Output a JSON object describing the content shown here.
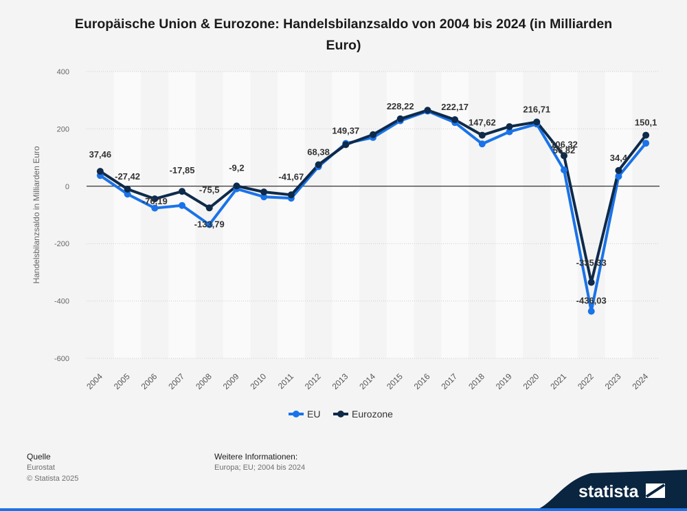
{
  "header": {
    "title": "Europäische Union & Eurozone: Handelsbilanzsaldo von 2004 bis 2024 (in Milliarden Euro)"
  },
  "footer": {
    "source_heading": "Quelle",
    "source": "Eurostat",
    "copyright": "© Statista 2025",
    "info_heading": "Weitere Informationen:",
    "info": "Europa; EU; 2004 bis 2024"
  },
  "brand": {
    "name": "statista",
    "accent": "#0a2540"
  },
  "chart_data": {
    "type": "line",
    "title": "Europäische Union & Eurozone: Handelsbilanzsaldo von 2004 bis 2024 (in Milliarden Euro)",
    "ylabel": "Handelsbilanzsaldo in Milliarden Euro",
    "xlabel": "",
    "ylim": [
      -600,
      400
    ],
    "yticks": [
      400,
      200,
      0,
      -200,
      -400,
      -600
    ],
    "categories": [
      "2004",
      "2005",
      "2006",
      "2007",
      "2008",
      "2009",
      "2010",
      "2011",
      "2012",
      "2013",
      "2014",
      "2015",
      "2016",
      "2017",
      "2018",
      "2019",
      "2020",
      "2021",
      "2022",
      "2023",
      "2024"
    ],
    "legend_position": "bottom",
    "grid": true,
    "series": [
      {
        "name": "EU",
        "color": "#1a73e8",
        "values": [
          37.46,
          -27.42,
          -76.19,
          -67,
          -133.79,
          -9.2,
          -37,
          -41.67,
          68.38,
          149.37,
          170,
          228.22,
          262,
          222.17,
          147.62,
          190,
          216.71,
          56.82,
          -436.03,
          34.4,
          150.1
        ]
      },
      {
        "name": "Eurozone",
        "color": "#0f2a4a",
        "values": [
          52,
          -10,
          -44,
          -17.85,
          -75.5,
          1,
          -20,
          -30,
          75,
          145,
          180,
          235,
          265,
          232,
          178,
          208,
          224,
          106.32,
          -335.33,
          55,
          178
        ]
      }
    ],
    "data_labels": [
      {
        "x": "2004",
        "text": "37,46"
      },
      {
        "x": "2005",
        "text": "-27,42"
      },
      {
        "x": "2006",
        "text": "-76,19"
      },
      {
        "x": "2007",
        "text": "-17,85"
      },
      {
        "x": "2008",
        "text": "-75,5"
      },
      {
        "x": "2008",
        "text": "-133,79"
      },
      {
        "x": "2009",
        "text": "-9,2"
      },
      {
        "x": "2011",
        "text": "-41,67"
      },
      {
        "x": "2012",
        "text": "68,38"
      },
      {
        "x": "2013",
        "text": "149,37"
      },
      {
        "x": "2015",
        "text": "228,22"
      },
      {
        "x": "2017",
        "text": "222,17"
      },
      {
        "x": "2018",
        "text": "147,62"
      },
      {
        "x": "2020",
        "text": "216,71"
      },
      {
        "x": "2021",
        "text": "106,32"
      },
      {
        "x": "2021",
        "text": "56,82"
      },
      {
        "x": "2022",
        "text": "-335,33"
      },
      {
        "x": "2022",
        "text": "-436,03"
      },
      {
        "x": "2023",
        "text": "34,4"
      },
      {
        "x": "2024",
        "text": "150,1"
      }
    ]
  }
}
